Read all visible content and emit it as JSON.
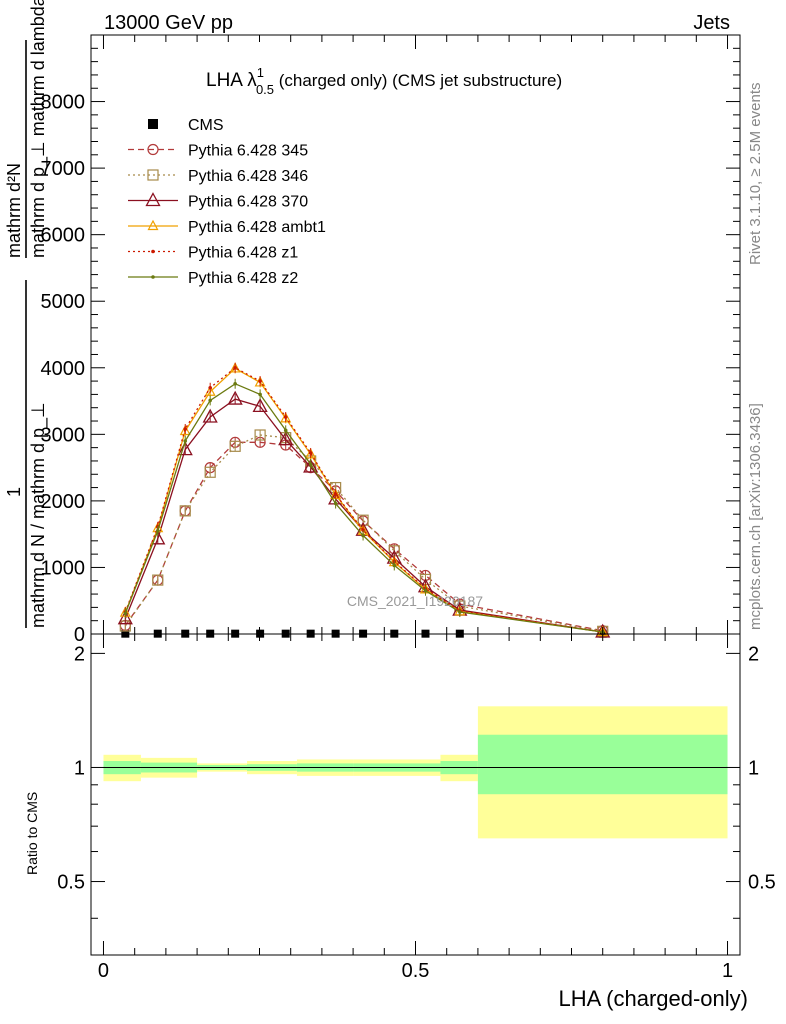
{
  "header": {
    "left": "13000 GeV pp",
    "right": "Jets"
  },
  "side_labels": {
    "rivet": "Rivet 3.1.10, ≥ 2.5M events",
    "mcplots": "mcplots.cern.ch [arXiv:1306.3436]"
  },
  "watermark": "CMS_2021_I1920187",
  "colors": {
    "cms": "#000000",
    "p345": "#b23a3a",
    "p346": "#a68a4a",
    "p370": "#8b1020",
    "ambt1": "#f0a000",
    "z1": "#cc1a00",
    "z2": "#6b7a10",
    "band_inner": "#99ff99",
    "band_outer": "#ffff99"
  },
  "chart_data": [
    {
      "type": "line",
      "title_main": "LHA λ",
      "title_sup": "1",
      "title_sub": "0.5",
      "title_rest": " (charged only) (CMS jet substructure)",
      "ylabel_numerator": "mathrm d²N",
      "ylabel_denominator": "mathrm d p_⊥ mathrm d lambda",
      "ylabel_prefix_num": "1",
      "ylabel_prefix_den": "mathrm d N / mathrm d p_⊥",
      "xlim": [
        -0.02,
        1.02
      ],
      "ylim": [
        0,
        9000
      ],
      "yticks": [
        0,
        1000,
        2000,
        3000,
        4000,
        5000,
        6000,
        7000,
        8000
      ],
      "legend_position": "top-left",
      "x": [
        0.035,
        0.087,
        0.131,
        0.171,
        0.211,
        0.251,
        0.292,
        0.332,
        0.372,
        0.416,
        0.466,
        0.516,
        0.571,
        0.8
      ],
      "series": [
        {
          "name": "CMS",
          "key": "cms",
          "style": "marker",
          "values": [
            5,
            5,
            5,
            5,
            5,
            5,
            5,
            5,
            5,
            5,
            5,
            5,
            5,
            5
          ]
        },
        {
          "name": "Pythia 6.428 345",
          "key": "p345",
          "style": "dashed-circle",
          "values": [
            130,
            810,
            1850,
            2500,
            2880,
            2880,
            2840,
            2500,
            2150,
            1700,
            1280,
            880,
            450,
            50
          ]
        },
        {
          "name": "Pythia 6.428 346",
          "key": "p346",
          "style": "dotted-square",
          "values": [
            120,
            810,
            1850,
            2430,
            2820,
            2990,
            2950,
            2600,
            2200,
            1710,
            1250,
            820,
            420,
            40
          ]
        },
        {
          "name": "Pythia 6.428 370",
          "key": "p370",
          "style": "solid-triangle",
          "values": [
            230,
            1430,
            2770,
            3260,
            3530,
            3420,
            2920,
            2510,
            2030,
            1560,
            1140,
            710,
            360,
            30
          ]
        },
        {
          "name": "Pythia 6.428 ambt1",
          "key": "ambt1",
          "style": "solid-triangle-small",
          "values": [
            320,
            1590,
            3050,
            3640,
            3990,
            3780,
            3240,
            2700,
            2090,
            1550,
            1080,
            670,
            340,
            30
          ]
        },
        {
          "name": "Pythia 6.428 z1",
          "key": "z1",
          "style": "dotted-dot",
          "values": [
            330,
            1610,
            3080,
            3700,
            4000,
            3800,
            3260,
            2720,
            2100,
            1560,
            1090,
            680,
            350,
            30
          ]
        },
        {
          "name": "Pythia 6.428 z2",
          "key": "z2",
          "style": "solid-dot",
          "values": [
            310,
            1550,
            2900,
            3510,
            3760,
            3600,
            3060,
            2550,
            1960,
            1480,
            1030,
            650,
            330,
            30
          ]
        }
      ]
    },
    {
      "type": "area",
      "ylabel": "Ratio to CMS",
      "xlabel": "LHA (charged-only)",
      "xlim": [
        -0.02,
        1.02
      ],
      "ylim": [
        0.32,
        2.25
      ],
      "yticks": [
        0.5,
        1,
        2
      ],
      "xticks": [
        0,
        0.5,
        1
      ],
      "xtick_labels": [
        "0",
        "0.5",
        "1"
      ],
      "bins": [
        {
          "x0": 0.0,
          "x1": 0.06,
          "inner": [
            0.96,
            1.04
          ],
          "outer": [
            0.92,
            1.08
          ]
        },
        {
          "x0": 0.06,
          "x1": 0.15,
          "inner": [
            0.97,
            1.03
          ],
          "outer": [
            0.94,
            1.06
          ]
        },
        {
          "x0": 0.15,
          "x1": 0.23,
          "inner": [
            0.985,
            1.015
          ],
          "outer": [
            0.975,
            1.025
          ]
        },
        {
          "x0": 0.23,
          "x1": 0.31,
          "inner": [
            0.98,
            1.02
          ],
          "outer": [
            0.96,
            1.04
          ]
        },
        {
          "x0": 0.31,
          "x1": 0.4,
          "inner": [
            0.975,
            1.025
          ],
          "outer": [
            0.95,
            1.05
          ]
        },
        {
          "x0": 0.4,
          "x1": 0.54,
          "inner": [
            0.975,
            1.025
          ],
          "outer": [
            0.95,
            1.05
          ]
        },
        {
          "x0": 0.54,
          "x1": 0.6,
          "inner": [
            0.96,
            1.04
          ],
          "outer": [
            0.92,
            1.08
          ]
        },
        {
          "x0": 0.6,
          "x1": 1.0,
          "inner": [
            0.85,
            1.22
          ],
          "outer": [
            0.65,
            1.45
          ]
        }
      ]
    }
  ]
}
